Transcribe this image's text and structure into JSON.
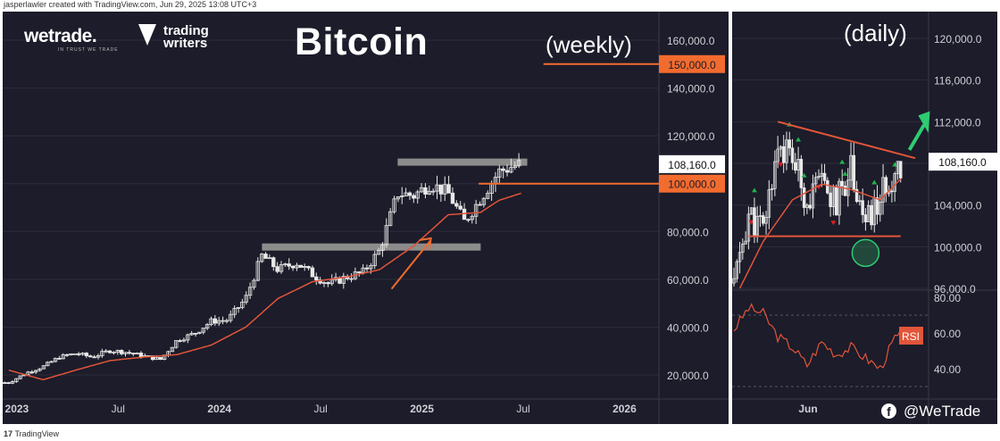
{
  "header": {
    "credit": "jasperlawler created with TradingView.com, Jun 29, 2025 13:08 UTC+3",
    "footer": "TradingView"
  },
  "branding": {
    "logo1": "wetrade.",
    "logo1_tagline": "IN TRUST WE TRADE",
    "logo2_line1": "trading",
    "logo2_line2": "writers",
    "title": "Bitcoin",
    "social_handle": "@WeTrade"
  },
  "colors": {
    "background": "#1c1c2a",
    "candle": "#e8e8e8",
    "moving_average": "#e2553a",
    "annotation": "#f26b2f",
    "resistance_box": "#8c8c8c",
    "breakout_arrow": "#2ecc71",
    "rsi_badge": "#e2553a",
    "markers_up": "#22b14c",
    "markers_down": "#e01e1e"
  },
  "chart_data": [
    {
      "type": "candlestick",
      "timeframe": "(weekly)",
      "x_ticks": [
        "2023",
        "Jul",
        "2024",
        "Jul",
        "2025",
        "Jul",
        "2026"
      ],
      "y_ticks": [
        "20,000.0",
        "40,000.0",
        "60,000.0",
        "80,000.0",
        "100,000.0",
        "120,000.0",
        "140,000.0",
        "160,000.0"
      ],
      "ylim": [
        12000,
        170000
      ],
      "xlim": [
        2022.93,
        2026.17
      ],
      "series": [
        {
          "name": "close",
          "x": [
            2022.96,
            2023.05,
            2023.13,
            2023.21,
            2023.29,
            2023.37,
            2023.46,
            2023.54,
            2023.63,
            2023.71,
            2023.79,
            2023.88,
            2023.96,
            2024.04,
            2024.13,
            2024.21,
            2024.29,
            2024.38,
            2024.46,
            2024.54,
            2024.63,
            2024.71,
            2024.79,
            2024.88,
            2024.96,
            2025.04,
            2025.13,
            2025.21,
            2025.29,
            2025.38,
            2025.44,
            2025.49
          ],
          "y": [
            16800,
            21000,
            23500,
            27500,
            29000,
            27500,
            30200,
            29500,
            27800,
            26500,
            34500,
            37500,
            42500,
            43000,
            52000,
            70000,
            64000,
            67000,
            62000,
            58000,
            61000,
            63000,
            72000,
            96000,
            95000,
            100000,
            96000,
            84000,
            94000,
            105000,
            107000,
            108160
          ]
        },
        {
          "name": "ma",
          "x": [
            2022.96,
            2023.13,
            2023.29,
            2023.46,
            2023.63,
            2023.79,
            2023.96,
            2024.13,
            2024.29,
            2024.46,
            2024.63,
            2024.79,
            2024.96,
            2025.13,
            2025.29,
            2025.38,
            2025.49
          ],
          "y": [
            22000,
            18000,
            22000,
            26000,
            27500,
            28500,
            32500,
            40000,
            52000,
            59000,
            61000,
            64000,
            74000,
            87000,
            88000,
            93000,
            96000
          ]
        }
      ],
      "levels": [
        "150,000.0",
        "100,000.0"
      ],
      "level_values": [
        150000,
        100000
      ],
      "current_price": "108,160.0",
      "current_price_value": 108160,
      "resistance_zones": [
        {
          "x": [
            2024.21,
            2025.29
          ],
          "y": 73500
        },
        {
          "x": [
            2024.88,
            2025.52
          ],
          "y": 109000
        }
      ]
    },
    {
      "type": "candlestick",
      "timeframe": "(daily)",
      "x_ticks": [
        "Jun"
      ],
      "y_ticks": [
        "96,000.0",
        "100,000.0",
        "104,000.0",
        "108,000.0",
        "112,000.0",
        "116,000.0",
        "120,000.0"
      ],
      "ylim": [
        95500,
        122000
      ],
      "current_price": "108,160.0",
      "current_price_value": 108160,
      "series": [
        {
          "name": "close",
          "x": [
            0,
            5,
            10,
            15,
            20,
            25,
            30,
            35,
            40,
            45,
            50,
            55,
            57
          ],
          "y": [
            96500,
            103000,
            101500,
            110000,
            108500,
            104500,
            106000,
            104000,
            108000,
            102000,
            104500,
            107500,
            108160
          ]
        },
        {
          "name": "ma",
          "x": [
            2,
            10,
            20,
            30,
            40,
            50,
            57
          ],
          "y": [
            96000,
            100500,
            104500,
            106000,
            105500,
            104500,
            106500
          ]
        }
      ],
      "support_level": 101000,
      "descending_trendline": [
        {
          "x": 15,
          "y": 112000
        },
        {
          "x": 52,
          "y": 108800
        }
      ],
      "rsi": {
        "label": "RSI",
        "y_ticks": [
          "40.00",
          "60.00",
          "80.00"
        ],
        "levels": [
          30,
          70
        ],
        "x": [
          0,
          5,
          10,
          15,
          20,
          25,
          30,
          35,
          40,
          45,
          50,
          55,
          57
        ],
        "values": [
          62,
          74,
          71,
          58,
          52,
          42,
          55,
          48,
          52,
          46,
          40,
          57,
          59
        ]
      }
    }
  ]
}
